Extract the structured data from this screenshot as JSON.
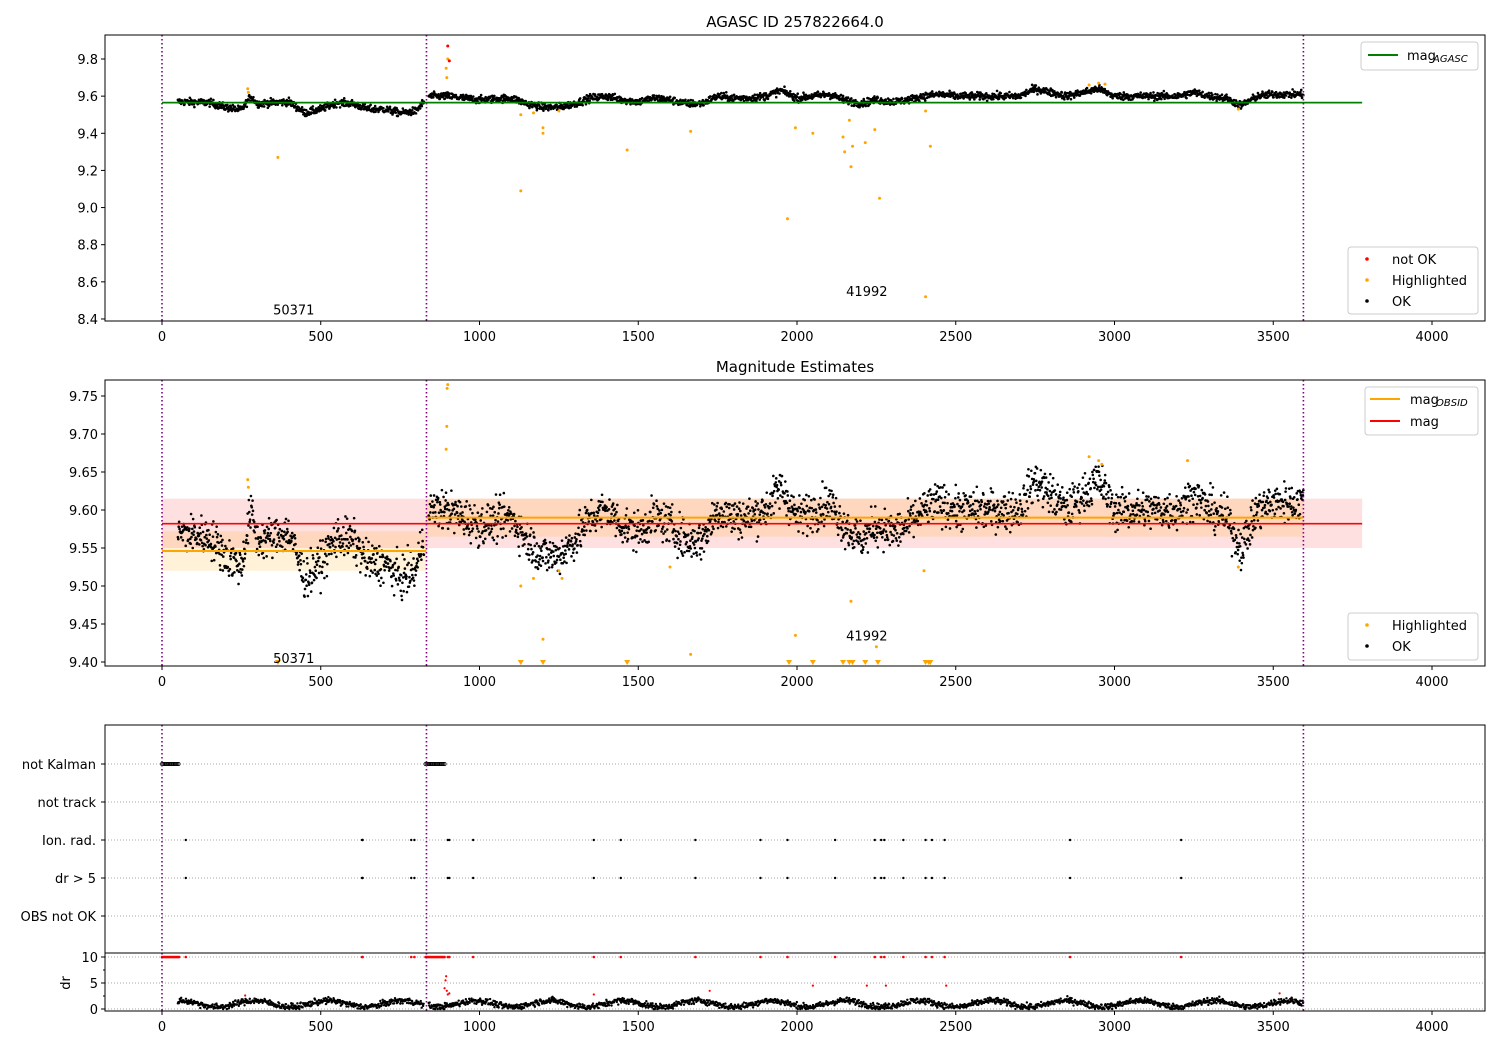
{
  "chart_data": [
    {
      "type": "scatter",
      "title": "AGASC ID 257822664.0",
      "xlabel": "",
      "ylabel": "",
      "xlim": [
        -180,
        4167
      ],
      "ylim": [
        8.389,
        9.929
      ],
      "xticks": [
        0,
        500,
        1000,
        1500,
        2000,
        2500,
        3000,
        3500,
        4000
      ],
      "yticks": [
        8.4,
        8.6,
        8.8,
        9.0,
        9.2,
        9.4,
        9.6,
        9.8
      ],
      "obs_boundaries": [
        0,
        833,
        3595
      ],
      "obs_labels": [
        {
          "text": "50371",
          "x": 415,
          "y": 8.45
        },
        {
          "text": "41992",
          "x": 2220,
          "y": 8.55
        }
      ],
      "mag_agasc": {
        "value": 9.565,
        "x": [
          0,
          3780
        ],
        "color": "#008000"
      },
      "ok_segments": [
        [
          50,
          825
        ],
        [
          840,
          3595
        ]
      ],
      "ok_trend": {
        "x": [
          50,
          150,
          200,
          250,
          280,
          300,
          400,
          450,
          500,
          550,
          600,
          650,
          700,
          750,
          800,
          825,
          840,
          900,
          1000,
          1100,
          1150,
          1200,
          1250,
          1300,
          1350,
          1400,
          1450,
          1500,
          1550,
          1600,
          1650,
          1700,
          1750,
          1800,
          1850,
          1900,
          1950,
          2000,
          2050,
          2100,
          2150,
          2200,
          2250,
          2300,
          2350,
          2400,
          2450,
          2500,
          2600,
          2700,
          2750,
          2800,
          2850,
          2900,
          2950,
          3000,
          3100,
          3200,
          3250,
          3300,
          3350,
          3400,
          3450,
          3500,
          3595
        ],
        "y": [
          9.57,
          9.565,
          9.54,
          9.525,
          9.6,
          9.56,
          9.57,
          9.51,
          9.53,
          9.565,
          9.56,
          9.53,
          9.53,
          9.51,
          9.52,
          9.57,
          9.6,
          9.6,
          9.58,
          9.59,
          9.56,
          9.54,
          9.54,
          9.56,
          9.59,
          9.6,
          9.58,
          9.57,
          9.59,
          9.58,
          9.56,
          9.56,
          9.6,
          9.59,
          9.59,
          9.6,
          9.63,
          9.59,
          9.6,
          9.61,
          9.58,
          9.56,
          9.58,
          9.57,
          9.58,
          9.6,
          9.61,
          9.6,
          9.6,
          9.6,
          9.64,
          9.62,
          9.6,
          9.62,
          9.64,
          9.6,
          9.6,
          9.6,
          9.62,
          9.6,
          9.59,
          9.55,
          9.6,
          9.61,
          9.61
        ]
      },
      "highlighted": [
        [
          270,
          9.64
        ],
        [
          272,
          9.62
        ],
        [
          365,
          9.27
        ],
        [
          900,
          9.8
        ],
        [
          895,
          9.75
        ],
        [
          897,
          9.7
        ],
        [
          1130,
          9.5
        ],
        [
          1130,
          9.09
        ],
        [
          1170,
          9.51
        ],
        [
          1200,
          9.43
        ],
        [
          1200,
          9.4
        ],
        [
          1250,
          9.52
        ],
        [
          1465,
          9.31
        ],
        [
          1665,
          9.41
        ],
        [
          1970,
          8.94
        ],
        [
          1995,
          9.43
        ],
        [
          2050,
          9.4
        ],
        [
          2145,
          9.38
        ],
        [
          2150,
          9.3
        ],
        [
          2165,
          9.47
        ],
        [
          2170,
          9.22
        ],
        [
          2175,
          9.33
        ],
        [
          2215,
          9.35
        ],
        [
          2245,
          9.42
        ],
        [
          2260,
          9.05
        ],
        [
          2405,
          9.52
        ],
        [
          2405,
          8.52
        ],
        [
          2420,
          9.33
        ],
        [
          2920,
          9.66
        ],
        [
          2950,
          9.67
        ],
        [
          2970,
          9.665
        ],
        [
          3390,
          9.53
        ]
      ],
      "not_ok": [
        [
          900,
          9.87
        ],
        [
          905,
          9.79
        ]
      ],
      "legend_lines": [
        {
          "label": "mag",
          "sub": "AGASC",
          "color": "#008000"
        }
      ],
      "legend_points": [
        {
          "label": "not OK",
          "color": "#ff0000"
        },
        {
          "label": "Highlighted",
          "color": "#ffa500"
        },
        {
          "label": "OK",
          "color": "#000000"
        }
      ]
    },
    {
      "type": "scatter",
      "title": "Magnitude Estimates",
      "xlabel": "",
      "ylabel": "",
      "xlim": [
        -180,
        4167
      ],
      "ylim": [
        9.395,
        9.771
      ],
      "xticks": [
        0,
        500,
        1000,
        1500,
        2000,
        2500,
        3000,
        3500,
        4000
      ],
      "yticks": [
        9.4,
        9.45,
        9.5,
        9.55,
        9.6,
        9.65,
        9.7,
        9.75
      ],
      "obs_boundaries": [
        0,
        833,
        3595
      ],
      "obs_labels": [
        {
          "text": "50371",
          "x": 415,
          "y": 9.405
        },
        {
          "text": "41992",
          "x": 2220,
          "y": 9.435
        }
      ],
      "mag": {
        "value": 9.582,
        "band": [
          9.55,
          9.615
        ],
        "x": [
          0,
          3780
        ],
        "color": "#ff0000"
      },
      "mag_obsid": [
        {
          "x": [
            0,
            833
          ],
          "value": 9.546,
          "band": [
            9.52,
            9.572
          ]
        },
        {
          "x": [
            833,
            3595
          ],
          "value": 9.59,
          "band": [
            9.565,
            9.615
          ]
        }
      ],
      "ok_segments": [
        [
          50,
          825
        ],
        [
          840,
          3595
        ]
      ],
      "ok_trend": {
        "x": [
          50,
          150,
          200,
          250,
          280,
          300,
          400,
          450,
          500,
          550,
          600,
          650,
          700,
          750,
          800,
          825,
          840,
          900,
          1000,
          1100,
          1150,
          1200,
          1250,
          1300,
          1350,
          1400,
          1450,
          1500,
          1550,
          1600,
          1650,
          1700,
          1750,
          1800,
          1850,
          1900,
          1950,
          2000,
          2050,
          2100,
          2150,
          2200,
          2250,
          2300,
          2350,
          2400,
          2450,
          2500,
          2600,
          2700,
          2750,
          2800,
          2850,
          2900,
          2950,
          3000,
          3100,
          3200,
          3250,
          3300,
          3350,
          3400,
          3450,
          3500,
          3595
        ],
        "y": [
          9.57,
          9.565,
          9.54,
          9.525,
          9.6,
          9.56,
          9.57,
          9.51,
          9.53,
          9.565,
          9.56,
          9.53,
          9.53,
          9.51,
          9.52,
          9.57,
          9.6,
          9.6,
          9.58,
          9.59,
          9.56,
          9.54,
          9.54,
          9.56,
          9.59,
          9.6,
          9.58,
          9.57,
          9.59,
          9.58,
          9.56,
          9.56,
          9.6,
          9.59,
          9.59,
          9.6,
          9.63,
          9.59,
          9.6,
          9.61,
          9.58,
          9.56,
          9.58,
          9.57,
          9.58,
          9.6,
          9.61,
          9.6,
          9.6,
          9.6,
          9.64,
          9.62,
          9.6,
          9.62,
          9.64,
          9.6,
          9.6,
          9.6,
          9.62,
          9.6,
          9.59,
          9.55,
          9.6,
          9.61,
          9.61
        ]
      },
      "highlighted": [
        [
          270,
          9.64
        ],
        [
          272,
          9.63
        ],
        [
          900,
          9.765
        ],
        [
          898,
          9.76
        ],
        [
          897,
          9.71
        ],
        [
          895,
          9.68
        ],
        [
          1130,
          9.5
        ],
        [
          1170,
          9.51
        ],
        [
          1200,
          9.43
        ],
        [
          1250,
          9.52
        ],
        [
          1260,
          9.51
        ],
        [
          1600,
          9.525
        ],
        [
          1665,
          9.41
        ],
        [
          1995,
          9.435
        ],
        [
          2170,
          9.48
        ],
        [
          2250,
          9.42
        ],
        [
          2400,
          9.52
        ],
        [
          3390,
          9.525
        ],
        [
          3230,
          9.665
        ],
        [
          2920,
          9.67
        ],
        [
          2950,
          9.665
        ],
        [
          2960,
          9.66
        ]
      ],
      "highlighted_below_axis_x": [
        365,
        1130,
        1200,
        1465,
        1975,
        2050,
        2145,
        2165,
        2175,
        2215,
        2255,
        2405,
        2415,
        2420
      ],
      "legend_lines": [
        {
          "label": "mag",
          "sub": "OBSID",
          "color": "#ffa500"
        },
        {
          "label": "mag",
          "sub": "",
          "color": "#ff0000"
        }
      ],
      "legend_points": [
        {
          "label": "Highlighted",
          "color": "#ffa500"
        },
        {
          "label": "OK",
          "color": "#000000"
        }
      ]
    },
    {
      "type": "scatter",
      "title": "",
      "xlabel": "",
      "ylabel": "dr",
      "xlim": [
        -180,
        4167
      ],
      "xticks": [
        0,
        500,
        1000,
        1500,
        2000,
        2500,
        3000,
        3500,
        4000
      ],
      "flag_categories": [
        "OBS not OK",
        "dr > 5",
        "Ion. rad.",
        "not track",
        "not Kalman"
      ],
      "not_kalman_ranges": [
        [
          0,
          55
        ],
        [
          830,
          890
        ]
      ],
      "flag_x": [
        75,
        630,
        632,
        785,
        795,
        900,
        905,
        980,
        1360,
        1445,
        1680,
        1885,
        1970,
        2120,
        2245,
        2265,
        2275,
        2335,
        2405,
        2425,
        2465,
        2860,
        3210
      ],
      "dr_ylim": [
        -0.38,
        10.77
      ],
      "dr_yticks": [
        0,
        5,
        10
      ],
      "dr_ok_segments": [
        [
          50,
          825
        ],
        [
          840,
          3595
        ]
      ],
      "dr_ok_level": 1.0,
      "dr_red": [
        [
          890,
          4
        ],
        [
          893,
          5.5
        ],
        [
          895,
          6.3
        ],
        [
          897,
          3.5
        ],
        [
          900,
          2.8
        ],
        [
          905,
          3
        ],
        [
          262,
          2.6
        ],
        [
          1360,
          2.8
        ],
        [
          1725,
          3.5
        ],
        [
          2050,
          4.5
        ],
        [
          2220,
          4.5
        ],
        [
          2280,
          4.5
        ],
        [
          2470,
          4.5
        ],
        [
          3520,
          3
        ]
      ],
      "obs_boundaries": [
        0,
        833,
        3595
      ]
    }
  ]
}
